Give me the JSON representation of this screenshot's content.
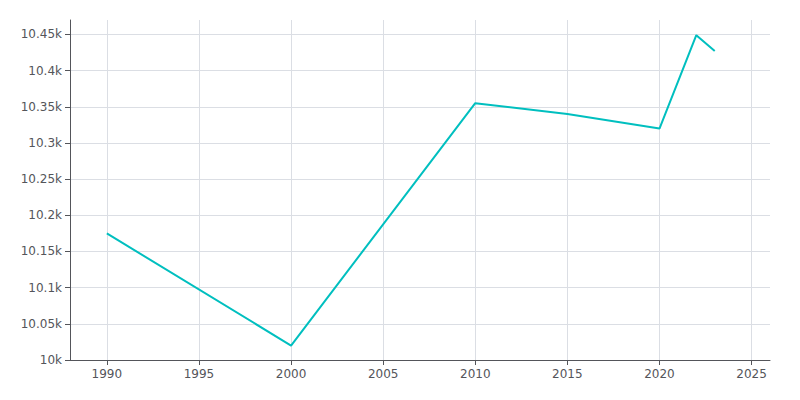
{
  "chart_data": {
    "type": "line",
    "x": [
      1990,
      2000,
      2010,
      2015,
      2020,
      2022,
      2023
    ],
    "values": [
      10175,
      10020,
      10355,
      10340,
      10320,
      10449,
      10427
    ],
    "color": "#00BFBF",
    "xlim": [
      1988,
      2026
    ],
    "xticks": [
      1990,
      1995,
      2000,
      2005,
      2010,
      2015,
      2020,
      2025
    ],
    "ylim": [
      10000,
      10470
    ],
    "yticks": [
      {
        "value": 10000,
        "label": "10k"
      },
      {
        "value": 10050,
        "label": "10.05k"
      },
      {
        "value": 10100,
        "label": "10.1k"
      },
      {
        "value": 10150,
        "label": "10.15k"
      },
      {
        "value": 10200,
        "label": "10.2k"
      },
      {
        "value": 10250,
        "label": "10.25k"
      },
      {
        "value": 10300,
        "label": "10.3k"
      },
      {
        "value": 10350,
        "label": "10.35k"
      },
      {
        "value": 10400,
        "label": "10.4k"
      },
      {
        "value": 10450,
        "label": "10.45k"
      }
    ],
    "grid": true
  }
}
